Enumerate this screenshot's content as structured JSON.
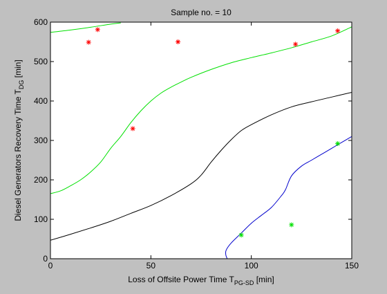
{
  "chart_data": {
    "type": "scatter",
    "title": "Sample no. = 10",
    "xlabel": {
      "main": "Loss of Offsite Power Time T",
      "sub": "PG-SD",
      "unit": " [min]"
    },
    "ylabel": {
      "main": "Diesel Generators Recovery Time T",
      "sub": "DG",
      "unit": " [min]"
    },
    "xlim": [
      0,
      150
    ],
    "ylim": [
      0,
      600
    ],
    "xticks": [
      0,
      50,
      100,
      150
    ],
    "yticks": [
      0,
      100,
      200,
      300,
      400,
      500,
      600
    ],
    "grid": false,
    "series": [
      {
        "kind": "curve",
        "color": "#00e000",
        "points": [
          [
            0,
            165
          ],
          [
            5,
            172
          ],
          [
            10,
            185
          ],
          [
            15,
            200
          ],
          [
            20,
            220
          ],
          [
            25,
            245
          ],
          [
            30,
            280
          ],
          [
            35,
            310
          ],
          [
            40,
            345
          ],
          [
            45,
            375
          ],
          [
            50,
            400
          ],
          [
            55,
            420
          ],
          [
            60,
            435
          ],
          [
            65,
            448
          ],
          [
            70,
            460
          ],
          [
            80,
            480
          ],
          [
            90,
            497
          ],
          [
            100,
            510
          ],
          [
            110,
            522
          ],
          [
            120,
            535
          ],
          [
            130,
            550
          ],
          [
            140,
            565
          ],
          [
            150,
            588
          ]
        ]
      },
      {
        "kind": "curve",
        "color": "#00e000",
        "points": [
          [
            0,
            574
          ],
          [
            10,
            580
          ],
          [
            20,
            587
          ],
          [
            30,
            595
          ],
          [
            35,
            598
          ]
        ]
      },
      {
        "kind": "curve",
        "color": "#000000",
        "points": [
          [
            0,
            47
          ],
          [
            10,
            62
          ],
          [
            20,
            78
          ],
          [
            30,
            95
          ],
          [
            40,
            115
          ],
          [
            50,
            135
          ],
          [
            60,
            160
          ],
          [
            70,
            190
          ],
          [
            75,
            212
          ],
          [
            80,
            245
          ],
          [
            85,
            275
          ],
          [
            90,
            302
          ],
          [
            95,
            325
          ],
          [
            100,
            340
          ],
          [
            110,
            365
          ],
          [
            120,
            385
          ],
          [
            130,
            398
          ],
          [
            140,
            410
          ],
          [
            150,
            422
          ]
        ]
      },
      {
        "kind": "curve",
        "color": "#0000cc",
        "points": [
          [
            88,
            0
          ],
          [
            87.3,
            10
          ],
          [
            87.5,
            22
          ],
          [
            90,
            40
          ],
          [
            95,
            65
          ],
          [
            100,
            90
          ],
          [
            105,
            110
          ],
          [
            110,
            130
          ],
          [
            115,
            160
          ],
          [
            117,
            175
          ],
          [
            120,
            210
          ],
          [
            125,
            235
          ],
          [
            130,
            250
          ],
          [
            135,
            265
          ],
          [
            140,
            280
          ],
          [
            145,
            295
          ],
          [
            150,
            310
          ]
        ]
      },
      {
        "kind": "markers",
        "color": "#ff0000",
        "points": [
          [
            19,
            549
          ],
          [
            23.5,
            581
          ],
          [
            63.5,
            550
          ],
          [
            41,
            330
          ],
          [
            122,
            544
          ],
          [
            143,
            578
          ]
        ]
      },
      {
        "kind": "markers",
        "color": "#00e000",
        "points": [
          [
            95,
            60
          ],
          [
            120,
            86
          ],
          [
            143,
            292
          ]
        ]
      }
    ]
  }
}
